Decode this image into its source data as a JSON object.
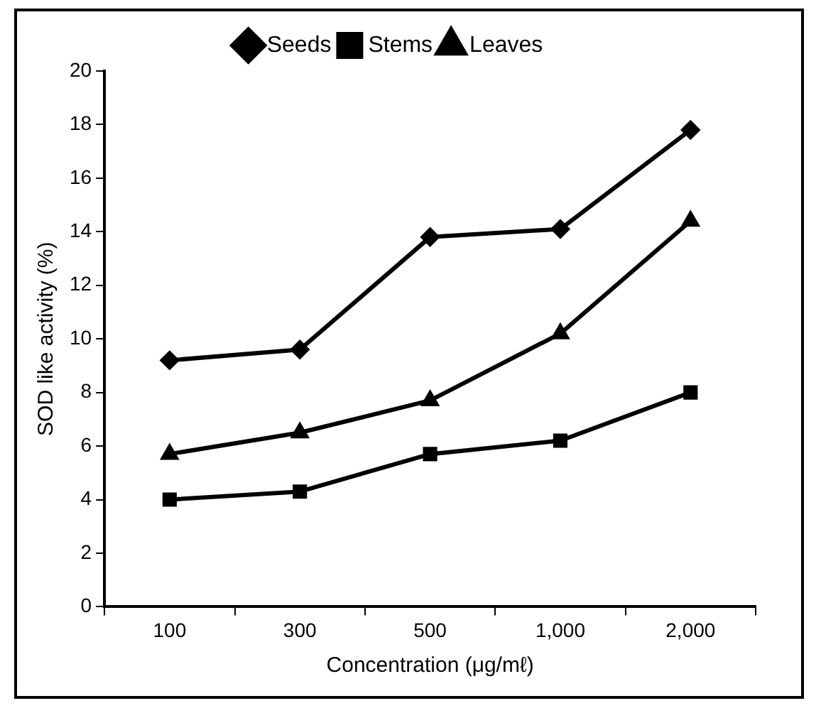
{
  "chart_data": {
    "type": "line",
    "xlabel": "Concentration (μg/mℓ)",
    "ylabel": "SOD like activity (%)",
    "categories": [
      "100",
      "300",
      "500",
      "1,000",
      "2,000"
    ],
    "series": [
      {
        "name": "Seeds",
        "color": "#000000",
        "marker": "diamond",
        "values": [
          9.2,
          9.6,
          13.8,
          14.1,
          17.8
        ]
      },
      {
        "name": "Stems",
        "color": "#000000",
        "marker": "square",
        "values": [
          4.0,
          4.3,
          5.7,
          6.2,
          8.0
        ]
      },
      {
        "name": "Leaves",
        "color": "#000000",
        "marker": "triangle",
        "values": [
          5.7,
          6.5,
          7.7,
          10.2,
          14.4
        ]
      }
    ],
    "ylim": [
      0,
      20
    ],
    "yticks": [
      0,
      2,
      4,
      6,
      8,
      10,
      12,
      14,
      16,
      18,
      20
    ],
    "grid": false,
    "legend": "top",
    "line_style": "solid"
  }
}
